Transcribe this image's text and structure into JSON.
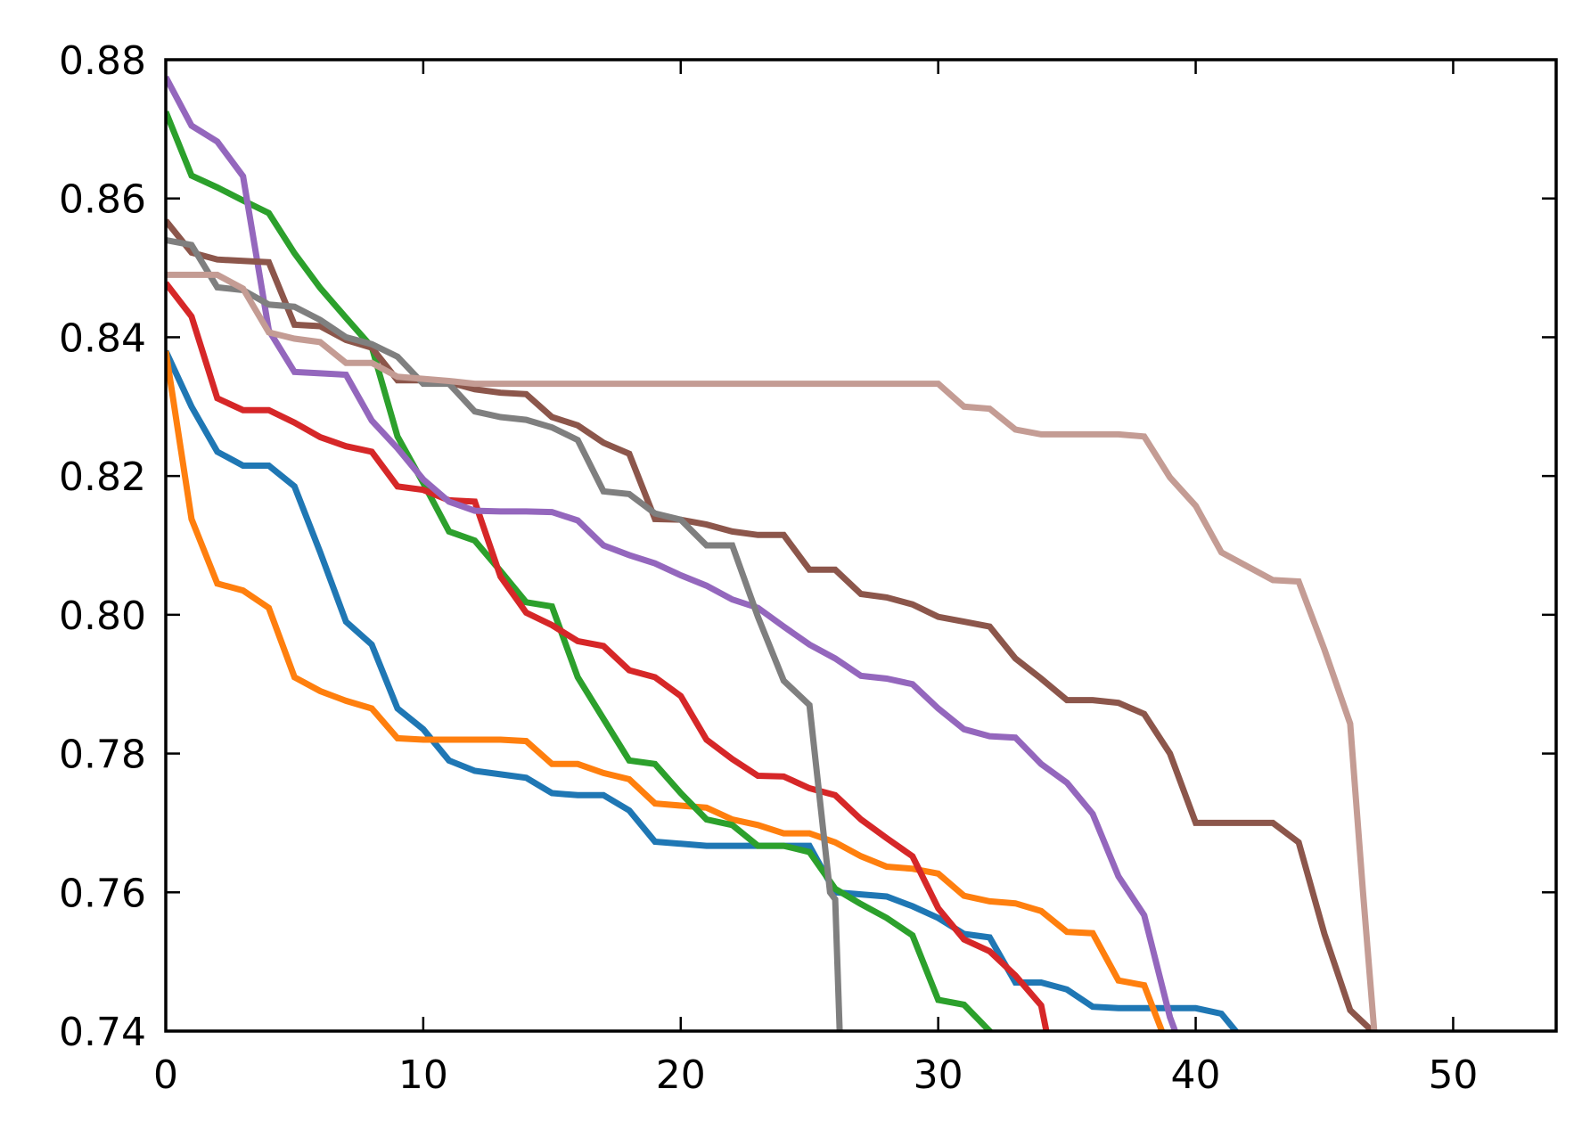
{
  "chart_data": {
    "type": "line",
    "title": "",
    "xlabel": "",
    "ylabel": "",
    "xlim": [
      0,
      54
    ],
    "ylim": [
      0.74,
      0.88
    ],
    "x_ticks": [
      0,
      10,
      20,
      30,
      40,
      50
    ],
    "y_ticks": [
      0.74,
      0.76,
      0.78,
      0.8,
      0.82,
      0.84,
      0.86,
      0.88
    ],
    "x_tick_labels": [
      "0",
      "10",
      "20",
      "30",
      "40",
      "50"
    ],
    "y_tick_labels": [
      "0.74",
      "0.76",
      "0.78",
      "0.80",
      "0.82",
      "0.84",
      "0.86",
      "0.88"
    ],
    "grid": false,
    "legend": "none",
    "series": [
      {
        "color": "#1f77b4",
        "x": [
          0,
          1,
          2,
          3,
          4,
          5,
          6,
          7,
          8,
          9,
          10,
          11,
          12,
          13,
          14,
          15,
          16,
          17,
          18,
          19,
          20,
          21,
          22,
          23,
          24,
          25,
          26,
          27,
          28,
          29,
          30,
          31,
          32,
          33,
          34,
          35,
          36,
          37,
          38,
          39,
          40,
          41,
          42
        ],
        "y": [
          0.838,
          0.83,
          0.8235,
          0.8215,
          0.8215,
          0.8185,
          0.809,
          0.799,
          0.7957,
          0.7865,
          0.7835,
          0.779,
          0.7775,
          0.777,
          0.7765,
          0.7743,
          0.774,
          0.774,
          0.7718,
          0.7673,
          0.767,
          0.7667,
          0.7667,
          0.7667,
          0.7667,
          0.7667,
          0.76,
          0.7597,
          0.7594,
          0.758,
          0.7563,
          0.754,
          0.7535,
          0.747,
          0.747,
          0.746,
          0.7435,
          0.7433,
          0.7433,
          0.7433,
          0.7433,
          0.7425,
          0.738
        ]
      },
      {
        "color": "#ff7f0e",
        "x": [
          0,
          1,
          2,
          3,
          4,
          5,
          6,
          7,
          8,
          9,
          10,
          11,
          12,
          13,
          14,
          15,
          16,
          17,
          18,
          19,
          20,
          21,
          22,
          23,
          24,
          25,
          26,
          27,
          28,
          29,
          30,
          31,
          32,
          33,
          34,
          35,
          36,
          37,
          38,
          39
        ],
        "y": [
          0.838,
          0.8138,
          0.8045,
          0.8035,
          0.801,
          0.791,
          0.789,
          0.7876,
          0.7865,
          0.7822,
          0.782,
          0.782,
          0.782,
          0.782,
          0.7818,
          0.7785,
          0.7785,
          0.7772,
          0.7763,
          0.7728,
          0.7725,
          0.7722,
          0.7705,
          0.7697,
          0.7685,
          0.7685,
          0.7672,
          0.7652,
          0.7637,
          0.7634,
          0.7627,
          0.7595,
          0.7587,
          0.7584,
          0.7573,
          0.7543,
          0.7541,
          0.7473,
          0.7466,
          0.737
        ]
      },
      {
        "color": "#2ca02c",
        "x": [
          0,
          1,
          2,
          3,
          4,
          5,
          6,
          7,
          8,
          9,
          10,
          11,
          12,
          13,
          14,
          15,
          16,
          17,
          18,
          19,
          20,
          21,
          22,
          23,
          24,
          25,
          26,
          27,
          28,
          29,
          30,
          31,
          32,
          33
        ],
        "y": [
          0.8725,
          0.8633,
          0.8616,
          0.8597,
          0.8579,
          0.8521,
          0.8471,
          0.8428,
          0.8386,
          0.8257,
          0.819,
          0.812,
          0.8107,
          0.8063,
          0.8018,
          0.8012,
          0.791,
          0.785,
          0.779,
          0.7785,
          0.7743,
          0.7705,
          0.7697,
          0.7667,
          0.7667,
          0.7658,
          0.7605,
          0.7583,
          0.7563,
          0.7538,
          0.7445,
          0.7438,
          0.74,
          0.736
        ]
      },
      {
        "color": "#d62728",
        "x": [
          0,
          1,
          2,
          3,
          4,
          5,
          6,
          7,
          8,
          9,
          10,
          11,
          12,
          13,
          14,
          15,
          16,
          17,
          18,
          19,
          20,
          21,
          22,
          23,
          24,
          25,
          26,
          27,
          28,
          29,
          30,
          31,
          32,
          33,
          34,
          34.2,
          34.4
        ],
        "y": [
          0.8478,
          0.843,
          0.8312,
          0.8295,
          0.8295,
          0.8277,
          0.8256,
          0.8243,
          0.8235,
          0.8185,
          0.818,
          0.8165,
          0.8163,
          0.8055,
          0.8003,
          0.7985,
          0.7962,
          0.7955,
          0.792,
          0.791,
          0.7883,
          0.782,
          0.7792,
          0.7768,
          0.7767,
          0.775,
          0.774,
          0.7705,
          0.7678,
          0.7652,
          0.7577,
          0.7532,
          0.7515,
          0.748,
          0.7437,
          0.74,
          0.737
        ]
      },
      {
        "color": "#9467bd",
        "x": [
          0,
          1,
          2,
          3,
          4,
          5,
          6,
          7,
          8,
          9,
          10,
          11,
          12,
          13,
          14,
          15,
          16,
          17,
          18,
          19,
          20,
          21,
          22,
          23,
          24,
          25,
          26,
          27,
          28,
          29,
          30,
          31,
          32,
          33,
          34,
          35,
          36,
          37,
          38,
          39,
          39.5
        ],
        "y": [
          0.8775,
          0.8705,
          0.8682,
          0.8632,
          0.841,
          0.835,
          0.8348,
          0.8346,
          0.828,
          0.824,
          0.8195,
          0.8163,
          0.815,
          0.8149,
          0.8149,
          0.8148,
          0.8136,
          0.81,
          0.8086,
          0.8074,
          0.8057,
          0.8042,
          0.8022,
          0.801,
          0.7983,
          0.7957,
          0.7937,
          0.7912,
          0.7908,
          0.79,
          0.7865,
          0.7835,
          0.7825,
          0.7823,
          0.7785,
          0.7758,
          0.7713,
          0.7623,
          0.7567,
          0.742,
          0.737
        ]
      },
      {
        "color": "#8c564b",
        "x": [
          0,
          1,
          2,
          3,
          4,
          5,
          6,
          7,
          8,
          9,
          10,
          11,
          12,
          13,
          14,
          15,
          16,
          17,
          18,
          19,
          20,
          21,
          22,
          23,
          24,
          25,
          26,
          27,
          28,
          29,
          30,
          31,
          32,
          33,
          34,
          35,
          36,
          37,
          38,
          39,
          40,
          41,
          42,
          43,
          44,
          45,
          46,
          47
        ],
        "y": [
          0.8568,
          0.8522,
          0.8512,
          0.851,
          0.8508,
          0.8418,
          0.8416,
          0.8396,
          0.8385,
          0.8338,
          0.8338,
          0.8335,
          0.8325,
          0.832,
          0.8318,
          0.8285,
          0.8273,
          0.8248,
          0.8232,
          0.8138,
          0.8137,
          0.813,
          0.812,
          0.8115,
          0.8115,
          0.8065,
          0.8065,
          0.803,
          0.8025,
          0.8015,
          0.7997,
          0.799,
          0.7983,
          0.7937,
          0.7908,
          0.7877,
          0.7877,
          0.7873,
          0.7857,
          0.78,
          0.77,
          0.77,
          0.77,
          0.77,
          0.7672,
          0.754,
          0.743,
          0.7395
        ]
      },
      {
        "color": "#7f7f7f",
        "x": [
          0,
          1,
          2,
          3,
          4,
          5,
          6,
          7,
          8,
          9,
          10,
          11,
          12,
          13,
          14,
          15,
          16,
          17,
          18,
          19,
          20,
          21,
          22,
          23,
          24,
          25,
          25.8,
          26,
          26.2
        ],
        "y": [
          0.854,
          0.8533,
          0.8472,
          0.8468,
          0.8447,
          0.8444,
          0.8425,
          0.84,
          0.839,
          0.8372,
          0.8333,
          0.8333,
          0.8293,
          0.8285,
          0.8281,
          0.827,
          0.8252,
          0.8178,
          0.8174,
          0.8146,
          0.8137,
          0.81,
          0.81,
          0.7997,
          0.7905,
          0.787,
          0.76,
          0.759,
          0.737
        ]
      },
      {
        "color": "#c49c94",
        "x": [
          0,
          1,
          2,
          3,
          4,
          5,
          6,
          7,
          8,
          9,
          10,
          11,
          12,
          13,
          14,
          15,
          16,
          17,
          18,
          19,
          20,
          21,
          22,
          23,
          24,
          25,
          26,
          27,
          28,
          29,
          30,
          31,
          32,
          33,
          34,
          35,
          36,
          37,
          38,
          39,
          40,
          41,
          42,
          43,
          44,
          45,
          46,
          46.5,
          47
        ],
        "y": [
          0.849,
          0.849,
          0.849,
          0.847,
          0.8407,
          0.8398,
          0.8393,
          0.8363,
          0.8363,
          0.8343,
          0.834,
          0.8337,
          0.8333,
          0.8333,
          0.8333,
          0.8333,
          0.8333,
          0.8333,
          0.8333,
          0.8333,
          0.8333,
          0.8333,
          0.8333,
          0.8333,
          0.8333,
          0.8333,
          0.8333,
          0.8333,
          0.8333,
          0.8333,
          0.8333,
          0.83,
          0.8297,
          0.8267,
          0.826,
          0.826,
          0.826,
          0.826,
          0.8257,
          0.8198,
          0.8157,
          0.809,
          0.807,
          0.805,
          0.8048,
          0.795,
          0.7843,
          0.76,
          0.737
        ]
      }
    ]
  }
}
